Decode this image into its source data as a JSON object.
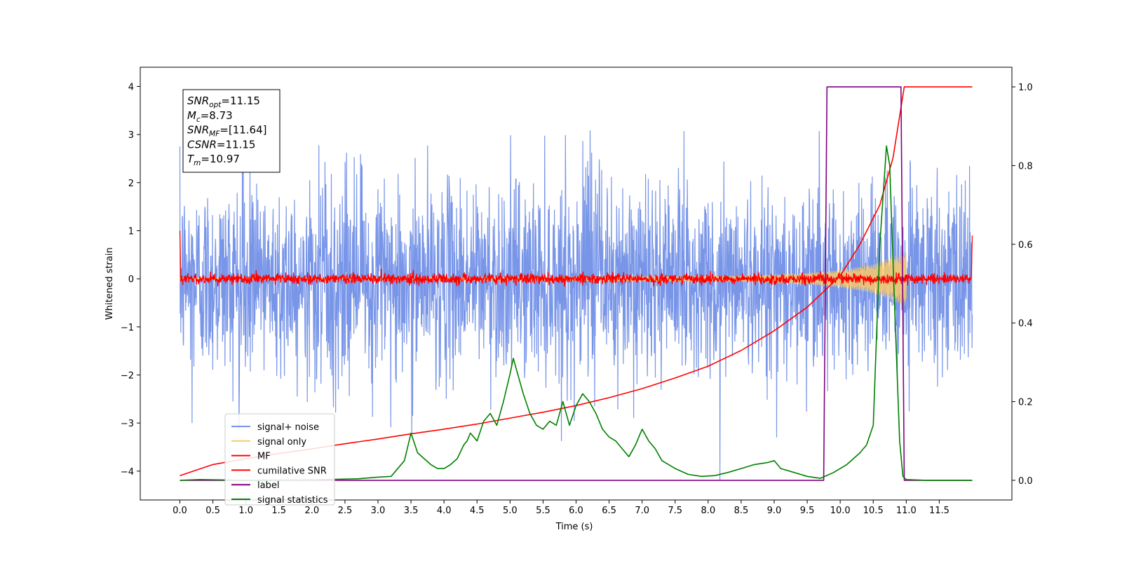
{
  "chart_data": {
    "type": "line",
    "xlabel": "Time (s)",
    "ylabel": "Whitened strain",
    "xlim": [
      -0.6,
      12.6
    ],
    "ylim": [
      -4.6,
      4.4
    ],
    "ylim_right": [
      -0.05,
      1.05
    ],
    "x_ticks": [
      "0.0",
      "0.5",
      "1.0",
      "1.5",
      "2.0",
      "2.5",
      "3.0",
      "3.5",
      "4.0",
      "4.5",
      "5.0",
      "5.5",
      "6.0",
      "6.5",
      "7.0",
      "7.5",
      "8.0",
      "8.5",
      "9.0",
      "9.5",
      "10.0",
      "10.5",
      "11.0",
      "11.5"
    ],
    "y_ticks_left": [
      "4",
      "3",
      "2",
      "1",
      "0",
      "−1",
      "−2",
      "−3",
      "−4"
    ],
    "y_ticks_right": [
      "1.0",
      "0.8",
      "0.6",
      "0.4",
      "0.2",
      "0.0"
    ],
    "legend_location": "lower-left",
    "annotation": {
      "lines": [
        {
          "sym": "SNR",
          "sub": "opt",
          "val": "=11.15"
        },
        {
          "sym": "M",
          "sub": "c",
          "val": "=8.73"
        },
        {
          "sym": "SNR",
          "sub": "MF",
          "val": "=[11.64]"
        },
        {
          "sym": "CSNR",
          "sub": "",
          "val": "=11.15"
        },
        {
          "sym": "T",
          "sub": "m",
          "val": "=10.97"
        }
      ]
    },
    "series": [
      {
        "name": "signal+ noise",
        "axis": "left",
        "color": "#7895e8",
        "style": "noise",
        "x_range": [
          0.0,
          12.0
        ],
        "typical_amplitude": 1.6,
        "peak_amplitude": 3.4
      },
      {
        "name": "signal only",
        "axis": "left",
        "color": "#f7c96a",
        "style": "chirp",
        "x_range": [
          0.0,
          11.0
        ],
        "envelope": [
          [
            0.0,
            0.02
          ],
          [
            8.5,
            0.06
          ],
          [
            9.5,
            0.12
          ],
          [
            10.0,
            0.18
          ],
          [
            10.5,
            0.3
          ],
          [
            10.97,
            0.55
          ]
        ]
      },
      {
        "name": "MF",
        "axis": "left",
        "color": "#ff0000",
        "style": "noise",
        "x_range": [
          0.0,
          12.0
        ],
        "typical_amplitude": 0.1,
        "peak_amplitude": 0.25,
        "end_values": [
          1.0,
          0.9
        ]
      },
      {
        "name": "cumilative SNR",
        "axis": "right",
        "color": "#ff0000",
        "x": [
          0.0,
          0.5,
          1.0,
          1.5,
          2.0,
          2.5,
          3.0,
          3.5,
          4.0,
          4.5,
          5.0,
          5.5,
          6.0,
          6.5,
          7.0,
          7.5,
          8.0,
          8.5,
          9.0,
          9.5,
          10.0,
          10.3,
          10.6,
          10.8,
          10.97,
          12.0
        ],
        "y": [
          0.012,
          0.04,
          0.055,
          0.068,
          0.08,
          0.093,
          0.105,
          0.118,
          0.13,
          0.143,
          0.158,
          0.173,
          0.19,
          0.21,
          0.233,
          0.26,
          0.29,
          0.33,
          0.38,
          0.44,
          0.52,
          0.6,
          0.7,
          0.82,
          1.0,
          1.0
        ]
      },
      {
        "name": "label",
        "axis": "right",
        "color": "#800080",
        "x": [
          0.0,
          9.75,
          9.8,
          10.92,
          10.97,
          12.0
        ],
        "y": [
          0.0,
          0.0,
          1.0,
          1.0,
          0.0,
          0.0
        ]
      },
      {
        "name": "signal statistics",
        "axis": "right",
        "color": "#008000",
        "x": [
          0.0,
          0.3,
          1.0,
          2.0,
          2.7,
          3.0,
          3.2,
          3.4,
          3.5,
          3.6,
          3.8,
          3.9,
          4.0,
          4.1,
          4.2,
          4.3,
          4.35,
          4.4,
          4.5,
          4.6,
          4.7,
          4.8,
          4.9,
          5.0,
          5.05,
          5.1,
          5.2,
          5.3,
          5.4,
          5.5,
          5.6,
          5.7,
          5.8,
          5.9,
          6.0,
          6.1,
          6.2,
          6.3,
          6.4,
          6.5,
          6.6,
          6.7,
          6.8,
          6.9,
          7.0,
          7.1,
          7.2,
          7.3,
          7.5,
          7.7,
          7.9,
          8.1,
          8.3,
          8.5,
          8.7,
          8.9,
          9.0,
          9.1,
          9.3,
          9.5,
          9.7,
          9.9,
          10.1,
          10.3,
          10.4,
          10.5,
          10.6,
          10.7,
          10.75,
          10.8,
          10.9,
          10.95,
          11.0,
          11.3,
          12.0
        ],
        "y": [
          0.0,
          0.002,
          0.0,
          0.001,
          0.004,
          0.008,
          0.01,
          0.05,
          0.12,
          0.07,
          0.04,
          0.03,
          0.03,
          0.04,
          0.055,
          0.09,
          0.1,
          0.12,
          0.1,
          0.15,
          0.17,
          0.14,
          0.2,
          0.27,
          0.31,
          0.28,
          0.22,
          0.17,
          0.14,
          0.13,
          0.15,
          0.14,
          0.2,
          0.14,
          0.19,
          0.22,
          0.2,
          0.17,
          0.13,
          0.11,
          0.1,
          0.08,
          0.06,
          0.09,
          0.13,
          0.1,
          0.08,
          0.05,
          0.03,
          0.015,
          0.01,
          0.012,
          0.02,
          0.03,
          0.04,
          0.045,
          0.05,
          0.03,
          0.02,
          0.01,
          0.005,
          0.02,
          0.04,
          0.07,
          0.09,
          0.14,
          0.6,
          0.85,
          0.8,
          0.55,
          0.1,
          0.01,
          0.002,
          0.0,
          0.0
        ]
      }
    ]
  }
}
